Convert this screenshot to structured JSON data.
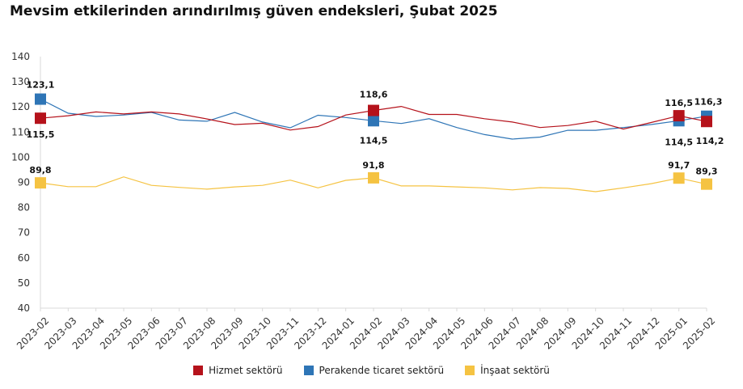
{
  "title": "Mevsim etkilerinden arındırılmış güven endeksleri, Şubat 2025",
  "chart_data": {
    "type": "line",
    "categories": [
      "2023-02",
      "2023-03",
      "2023-04",
      "2023-05",
      "2023-06",
      "2023-07",
      "2023-08",
      "2023-09",
      "2023-10",
      "2023-11",
      "2023-12",
      "2024-01",
      "2024-02",
      "2024-03",
      "2024-04",
      "2024-05",
      "2024-06",
      "2024-07",
      "2024-08",
      "2024-09",
      "2024-10",
      "2024-11",
      "2024-12",
      "2025-01",
      "2025-02"
    ],
    "ylim": [
      40,
      140
    ],
    "yticks": [
      40,
      50,
      60,
      70,
      80,
      90,
      100,
      110,
      120,
      130,
      140
    ],
    "grid": false,
    "legend_position": "bottom",
    "series": [
      {
        "name": "Hizmet sektörü",
        "color": "#b5121b",
        "values": [
          115.5,
          116.5,
          118.0,
          117.2,
          118.0,
          117.2,
          115.2,
          113.0,
          113.5,
          110.8,
          112.2,
          116.8,
          118.6,
          120.2,
          117.0,
          117.0,
          115.3,
          114.0,
          111.8,
          112.6,
          114.3,
          111.2,
          113.8,
          116.5,
          114.2
        ],
        "labels": {
          "0": "115,5",
          "12": "118,6",
          "23": "116,5",
          "24": "114,2"
        }
      },
      {
        "name": "Perakende ticaret sektörü",
        "color": "#2e75b6",
        "values": [
          123.1,
          117.5,
          116.2,
          116.8,
          117.8,
          114.8,
          114.3,
          117.8,
          114.0,
          111.7,
          116.7,
          115.8,
          114.5,
          113.4,
          115.3,
          111.8,
          109.0,
          107.2,
          108.0,
          110.7,
          110.7,
          111.8,
          113.0,
          114.5,
          116.3
        ],
        "labels": {
          "0": "123,1",
          "12": "114,5",
          "23": "114,5",
          "24": "116,3"
        }
      },
      {
        "name": "İnşaat sektörü",
        "color": "#f5c342",
        "values": [
          89.8,
          88.3,
          88.3,
          92.2,
          88.8,
          88.0,
          87.3,
          88.2,
          88.8,
          90.9,
          87.8,
          90.8,
          91.8,
          88.6,
          88.6,
          88.2,
          87.8,
          87.0,
          87.9,
          87.6,
          86.3,
          87.8,
          89.5,
          91.7,
          89.3
        ],
        "labels": {
          "0": "89,8",
          "12": "91,8",
          "23": "91,7",
          "24": "89,3"
        }
      }
    ]
  }
}
